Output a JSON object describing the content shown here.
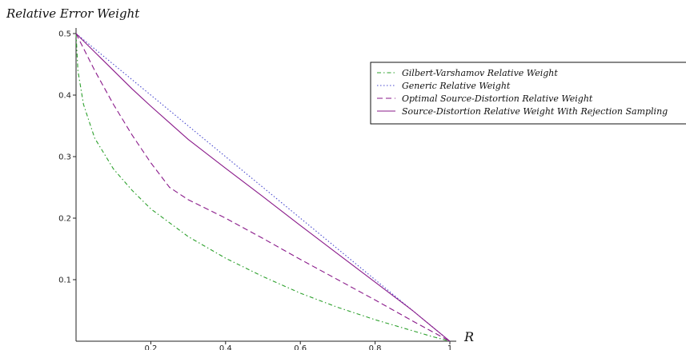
{
  "chart_data": {
    "type": "line",
    "ylabel": "Relative Error Weight",
    "xlabel": "R",
    "xlim": [
      0,
      1
    ],
    "ylim": [
      0,
      0.5
    ],
    "x_ticks": [
      "0.2",
      "0.4",
      "0.6",
      "0.8",
      "1"
    ],
    "y_ticks": [
      "0.1",
      "0.2",
      "0.3",
      "0.4",
      "0.5"
    ],
    "grid": false,
    "legend_position": "top-right",
    "series": [
      {
        "name": "Gilbert-Varshamov Relative Weight",
        "color": "#2ca02c",
        "dash": "dashdot",
        "x": [
          0,
          0.005,
          0.02,
          0.05,
          0.1,
          0.15,
          0.2,
          0.3,
          0.4,
          0.5,
          0.6,
          0.7,
          0.8,
          0.9,
          0.95,
          1
        ],
        "y": [
          0.5,
          0.44,
          0.385,
          0.33,
          0.28,
          0.245,
          0.215,
          0.17,
          0.135,
          0.105,
          0.078,
          0.055,
          0.035,
          0.017,
          0.008,
          0
        ]
      },
      {
        "name": "Generic Relative Weight",
        "color": "#4a4acf",
        "dash": "dotted",
        "x": [
          0,
          1
        ],
        "y": [
          0.5,
          0
        ]
      },
      {
        "name": "Optimal Source-Distortion Relative Weight",
        "color": "#8a1a8a",
        "dash": "dashed",
        "x": [
          0,
          0.05,
          0.1,
          0.15,
          0.2,
          0.25,
          0.3,
          0.4,
          0.5,
          0.6,
          0.7,
          0.8,
          0.9,
          1
        ],
        "y": [
          0.5,
          0.44,
          0.385,
          0.335,
          0.29,
          0.25,
          0.23,
          0.2,
          0.167,
          0.133,
          0.1,
          0.067,
          0.033,
          0
        ]
      },
      {
        "name": "Source-Distortion Relative Weight With Rejection Sampling",
        "color": "#8a1a8a",
        "dash": "solid",
        "x": [
          0,
          0.05,
          0.1,
          0.15,
          0.2,
          0.25,
          0.3,
          0.4,
          0.5,
          0.6,
          0.7,
          0.8,
          0.9,
          0.95,
          1
        ],
        "y": [
          0.5,
          0.47,
          0.44,
          0.41,
          0.382,
          0.355,
          0.328,
          0.281,
          0.235,
          0.188,
          0.142,
          0.096,
          0.05,
          0.025,
          0
        ]
      }
    ]
  }
}
